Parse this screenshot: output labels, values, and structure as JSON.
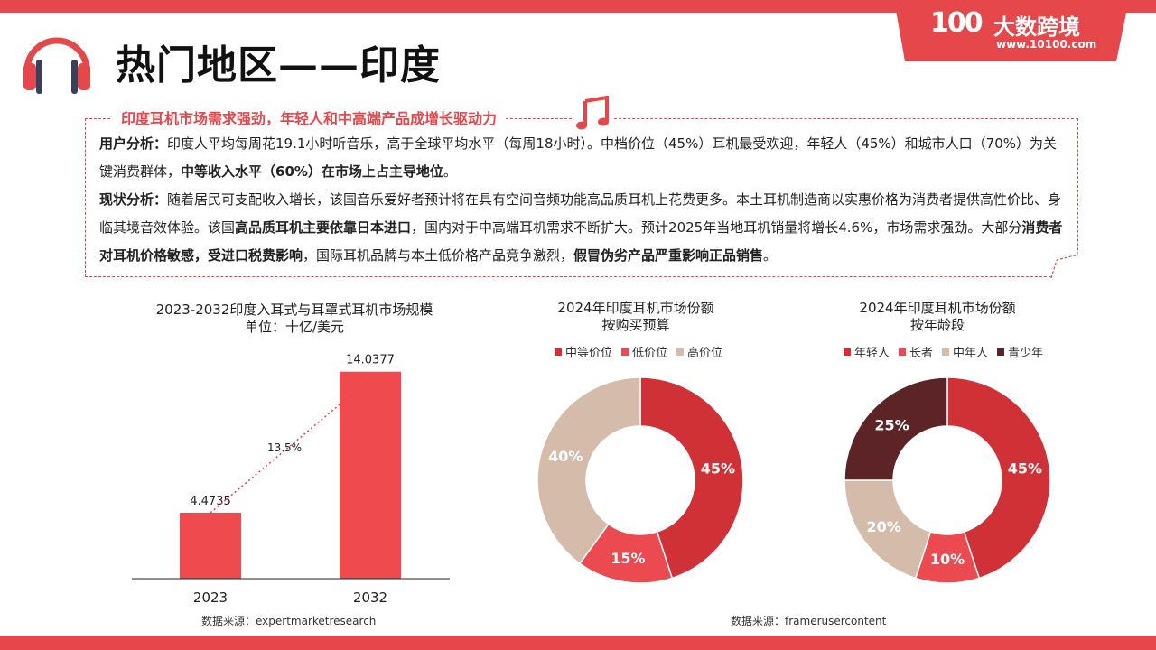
{
  "header": {
    "title": "热门地区——印度",
    "logo_mark": "100",
    "logo_name": "大数跨境",
    "logo_url": "www.10100.com"
  },
  "summary": {
    "heading": "印度耳机市场需求强劲，年轻人和中高端产品成增长驱动力",
    "user_analysis": {
      "label": "用户分析：",
      "text_1": "印度人平均每周花19.1小时听音乐，高于全球平均水平（每周18小时）。中档价位（45%）耳机最受欢迎，年轻人（45%）和城市人口（70%）为关键消费群体，",
      "bold_1": "中等收入水平（60%）在市场上占主导地位",
      "text_2": "。"
    },
    "status_analysis": {
      "label": "现状分析：",
      "text_1": "随着居民可支配收入增长，该国音乐爱好者预计将在具有空间音频功能高品质耳机上花费更多。本土耳机制造商以实惠价格为消费者提供高性价比、身临其境音效体验。该国",
      "bold_1": "高品质耳机主要依靠日本进口",
      "text_2": "，国内对于中高端耳机需求不断扩大。预计2025年当地耳机销量将增长4.6%，市场需求强劲。大部分",
      "bold_2": "消费者对耳机价格敏感，受进口税费影响",
      "text_3": "，国际耳机品牌与本土低价格产品竞争激烈，",
      "bold_3": "假冒伪劣产品严重影响正品销售",
      "text_4": "。"
    }
  },
  "charts": {
    "source_left": "数据来源：expertmarketresearch",
    "source_right": "数据来源：framerusercontent"
  },
  "colors": {
    "accent": "#e5474b",
    "dark_red": "#cf3136",
    "light_red": "#ea4a50",
    "beige": "#d4bbaa",
    "maroon": "#5c2426"
  },
  "chart_data": [
    {
      "type": "bar",
      "title": "2023-2032印度入耳式与耳罩式耳机市场规模",
      "subtitle": "单位：十亿/美元",
      "categories": [
        "2023",
        "2032"
      ],
      "values": [
        4.4735,
        14.0377
      ],
      "value_labels": [
        "4.4735",
        "14.0377"
      ],
      "annotation": "13.5%",
      "ylim": [
        0,
        15
      ],
      "grid": false,
      "color": "#ef4b4f"
    },
    {
      "type": "pie",
      "title": "2024年印度耳机市场份额",
      "subtitle": "按购买预算",
      "legend_position": "top",
      "slices": [
        {
          "label": "中等价位",
          "value": 45,
          "display": "45%",
          "color": "#cf3136"
        },
        {
          "label": "低价位",
          "value": 15,
          "display": "15%",
          "color": "#ea4a50"
        },
        {
          "label": "高价位",
          "value": 40,
          "display": "40%",
          "color": "#d4bbaa"
        }
      ]
    },
    {
      "type": "pie",
      "title": "2024年印度耳机市场份额",
      "subtitle": "按年龄段",
      "legend_position": "top",
      "slices": [
        {
          "label": "年轻人",
          "value": 45,
          "display": "45%",
          "color": "#cf3136"
        },
        {
          "label": "长者",
          "value": 10,
          "display": "10%",
          "color": "#ea4a50"
        },
        {
          "label": "中年人",
          "value": 20,
          "display": "20%",
          "color": "#d4bbaa"
        },
        {
          "label": "青少年",
          "value": 25,
          "display": "25%",
          "color": "#5c2426"
        }
      ]
    }
  ]
}
